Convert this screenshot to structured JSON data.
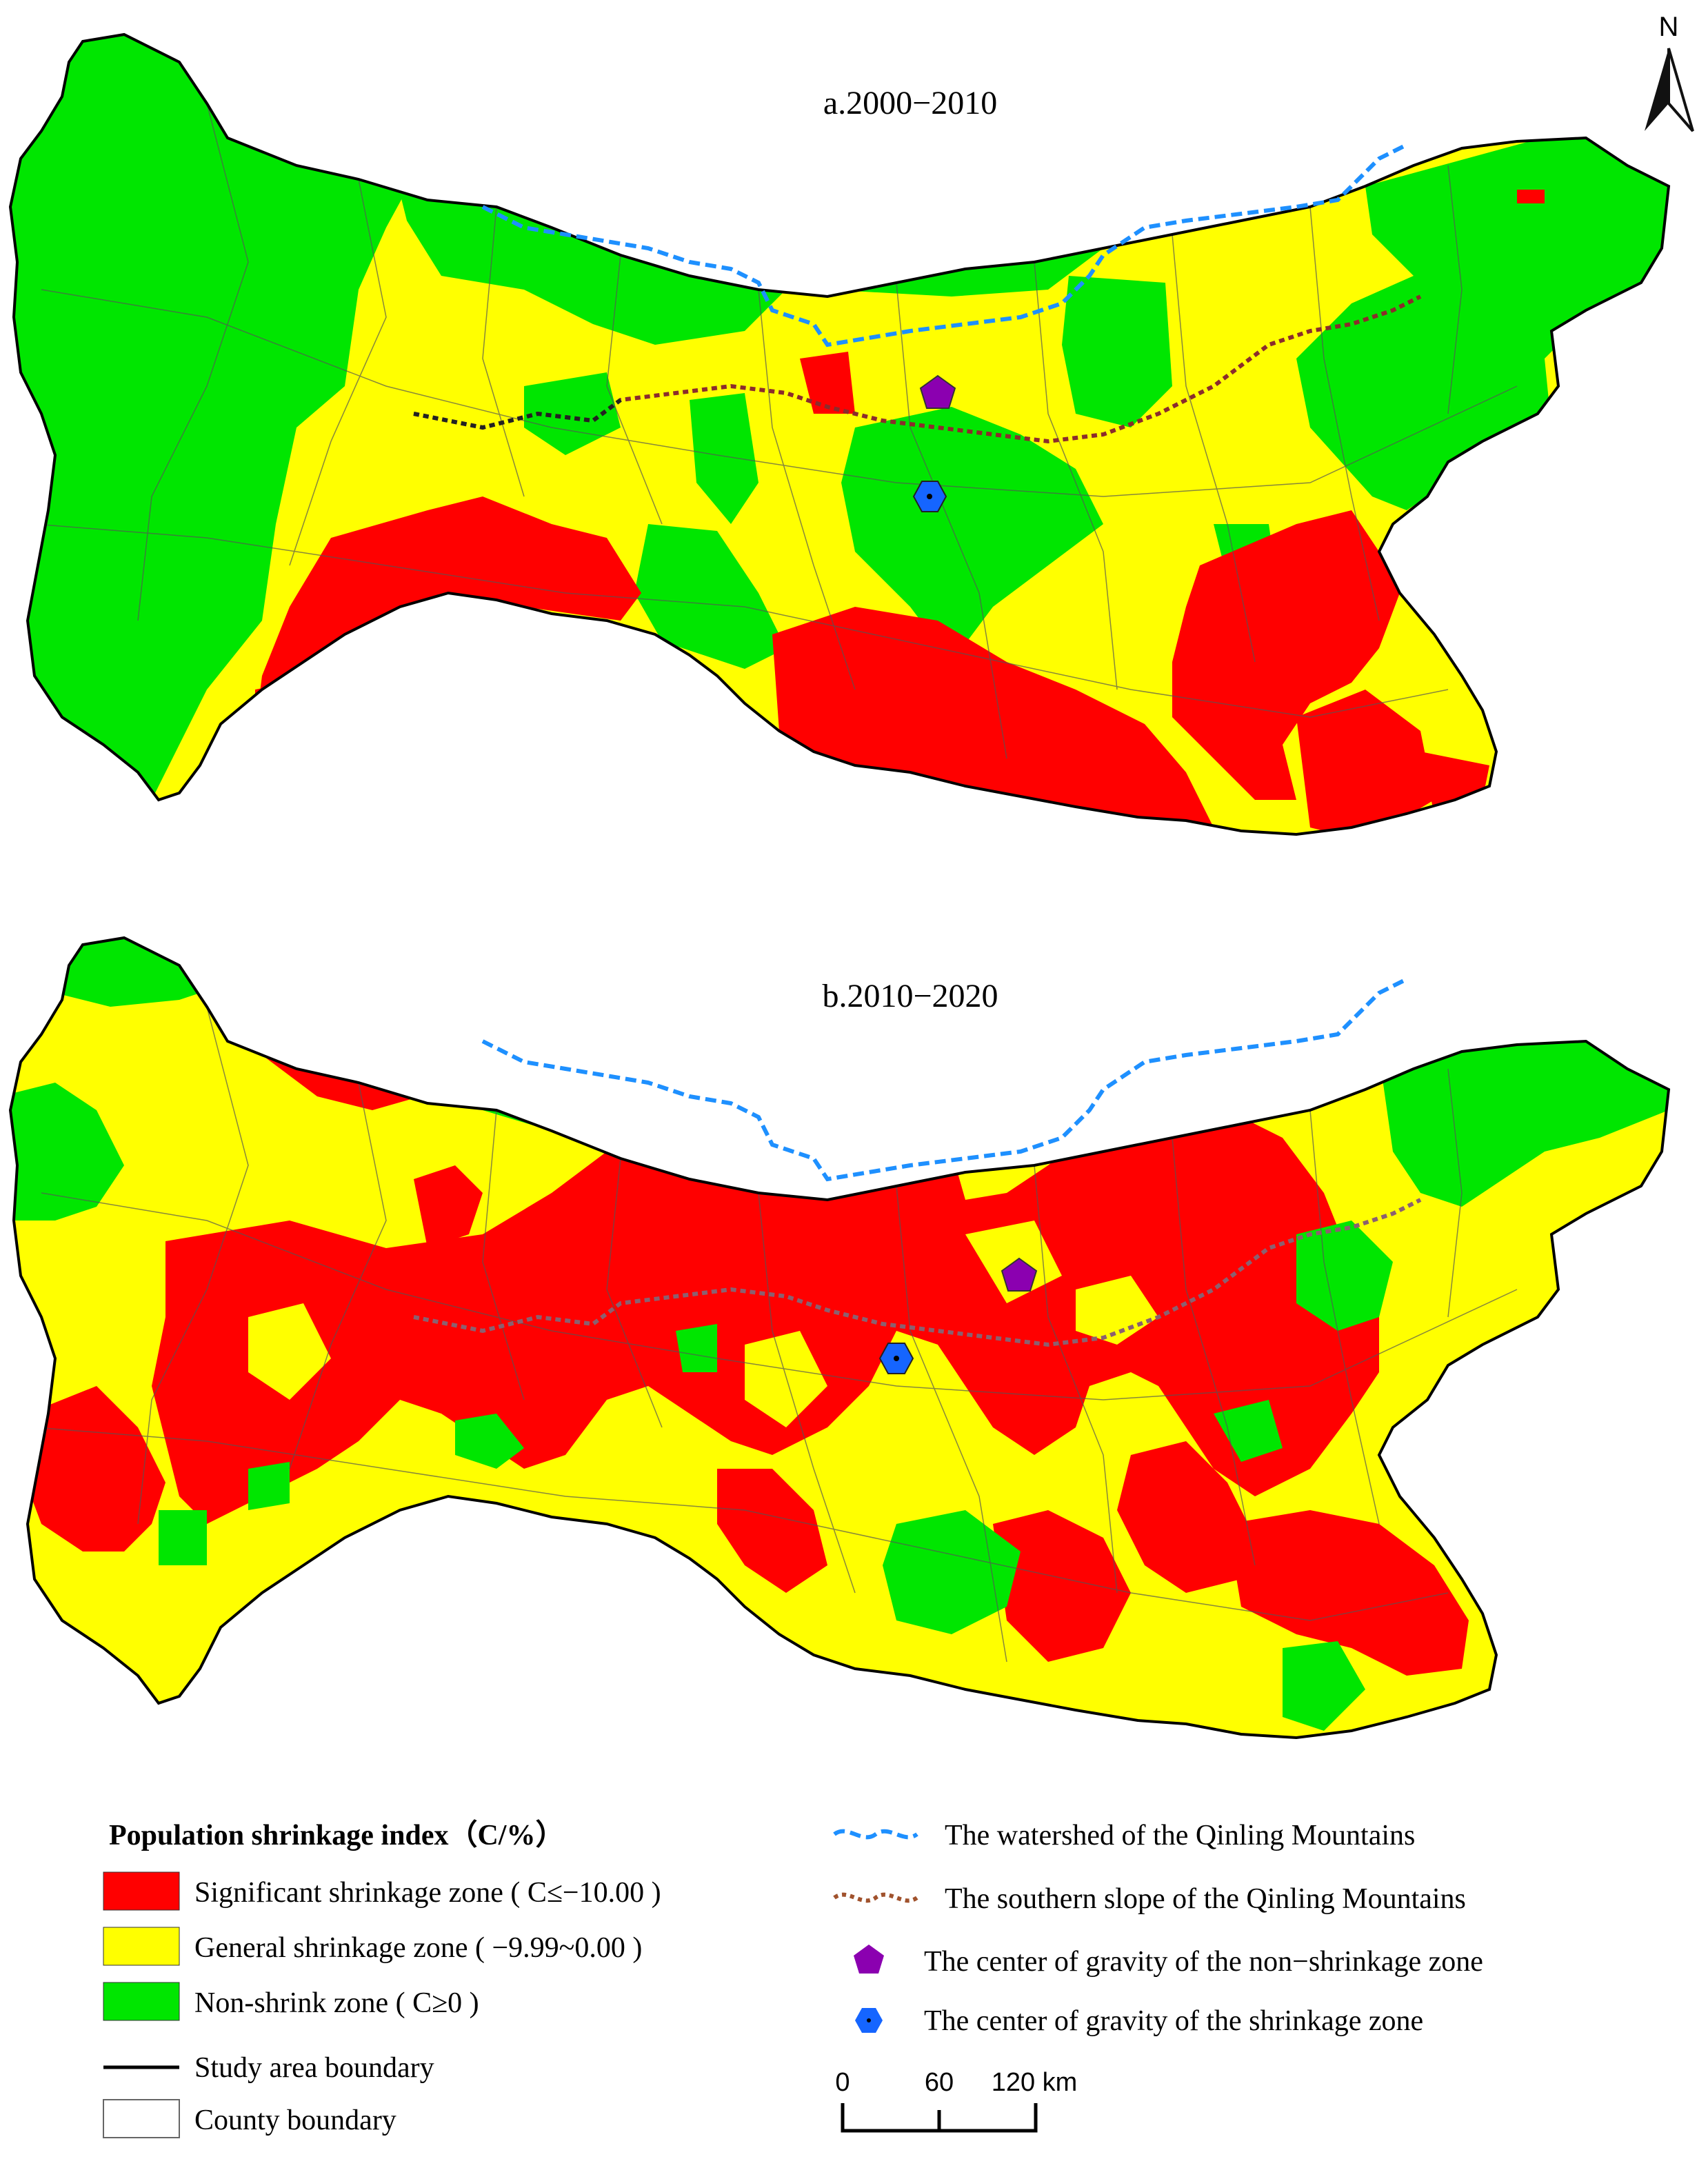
{
  "panels": [
    {
      "title": "a.2000−2010"
    },
    {
      "title": "b.2010−2020"
    }
  ],
  "north_arrow": {
    "label": "N"
  },
  "legend": {
    "title": "Population shrinkage index（C/%）",
    "classes": [
      {
        "label": "Significant shrinkage zone ( C≤−10.00 )",
        "color": "#ff0000"
      },
      {
        "label": "General shrinkage zone ( −9.99~0.00 )",
        "color": "#ffff00"
      },
      {
        "label": "Non-shrink zone ( C≥0 )",
        "color": "#00e600"
      }
    ],
    "boundaries": [
      {
        "label": "Study area boundary",
        "icon": "solid-black-line"
      },
      {
        "label": "County boundary",
        "icon": "outlined-box"
      }
    ],
    "lines": [
      {
        "label": "The watershed of the Qinling Mountains",
        "color": "#1e90ff",
        "icon": "blue-dashed-line"
      },
      {
        "label": "The southern slope of the Qinling Mountains",
        "color": "#a0522d",
        "icon": "brown-dotted-line"
      }
    ],
    "points": [
      {
        "label": "The center of gravity of the non−shrinkage zone",
        "color": "#8b00b0",
        "icon": "pentagon"
      },
      {
        "label": "The center of gravity of the shrinkage zone",
        "color": "#1565ff",
        "icon": "hexagon"
      }
    ]
  },
  "scale_bar": {
    "labels": [
      "0",
      "60",
      "120 km"
    ]
  }
}
